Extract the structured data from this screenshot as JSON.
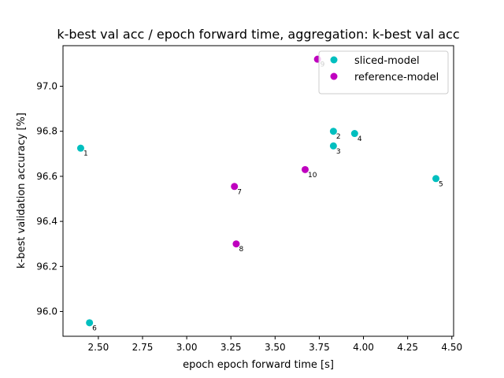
{
  "chart_data": {
    "type": "scatter",
    "title": "k-best val acc / epoch forward time, aggregation: k-best val acc",
    "xlabel": "epoch epoch forward time [s]",
    "ylabel": "k-best validation accuracy [%]",
    "xlim": [
      2.3,
      4.51
    ],
    "ylim": [
      95.89,
      97.18
    ],
    "xticks": [
      "2.50",
      "2.75",
      "3.00",
      "3.25",
      "3.50",
      "3.75",
      "4.00",
      "4.25",
      "4.50"
    ],
    "yticks": [
      "96.0",
      "96.2",
      "96.4",
      "96.6",
      "96.8",
      "97.0"
    ],
    "grid": false,
    "legend_position": "top-right",
    "series": [
      {
        "name": "sliced-model",
        "color": "#00bfbf",
        "points": [
          {
            "x": 2.4,
            "y": 96.725,
            "label": "1"
          },
          {
            "x": 3.83,
            "y": 96.8,
            "label": "2"
          },
          {
            "x": 3.83,
            "y": 96.735,
            "label": "3"
          },
          {
            "x": 3.95,
            "y": 96.79,
            "label": "4"
          },
          {
            "x": 4.41,
            "y": 96.59,
            "label": "5"
          },
          {
            "x": 2.45,
            "y": 95.95,
            "label": "6"
          }
        ]
      },
      {
        "name": "reference-model",
        "color": "#bf00bf",
        "points": [
          {
            "x": 3.27,
            "y": 96.555,
            "label": "7"
          },
          {
            "x": 3.28,
            "y": 96.3,
            "label": "8"
          },
          {
            "x": 3.74,
            "y": 97.12,
            "label": "9"
          },
          {
            "x": 3.67,
            "y": 96.63,
            "label": "10"
          }
        ]
      }
    ]
  }
}
